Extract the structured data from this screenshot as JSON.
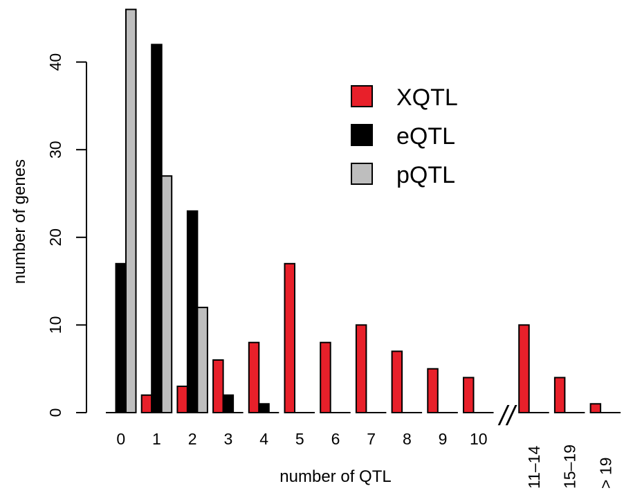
{
  "chart_data": {
    "type": "bar",
    "xlabel": "number of QTL",
    "ylabel": "number of genes",
    "ylim": [
      0,
      46
    ],
    "yticks": [
      0,
      10,
      20,
      30,
      40
    ],
    "categories": [
      "0",
      "1",
      "2",
      "3",
      "4",
      "5",
      "6",
      "7",
      "8",
      "9",
      "10",
      "11–14",
      "15–19",
      "> 19"
    ],
    "axis_break_marker": "//",
    "axis_break_after": "10",
    "series": [
      {
        "name": "XQTL",
        "color": "#e8202a",
        "values": [
          0,
          2,
          3,
          6,
          8,
          17,
          8,
          10,
          7,
          5,
          4,
          10,
          4,
          1
        ]
      },
      {
        "name": "eQTL",
        "color": "#000000",
        "values": [
          17,
          42,
          23,
          2,
          1,
          0,
          0,
          0,
          0,
          0,
          0,
          0,
          0,
          0
        ]
      },
      {
        "name": "pQTL",
        "color": "#bebebe",
        "values": [
          46,
          27,
          12,
          0,
          0,
          0,
          0,
          0,
          0,
          0,
          0,
          0,
          0,
          0
        ]
      }
    ],
    "legend_position": "top-right",
    "grid": false
  }
}
